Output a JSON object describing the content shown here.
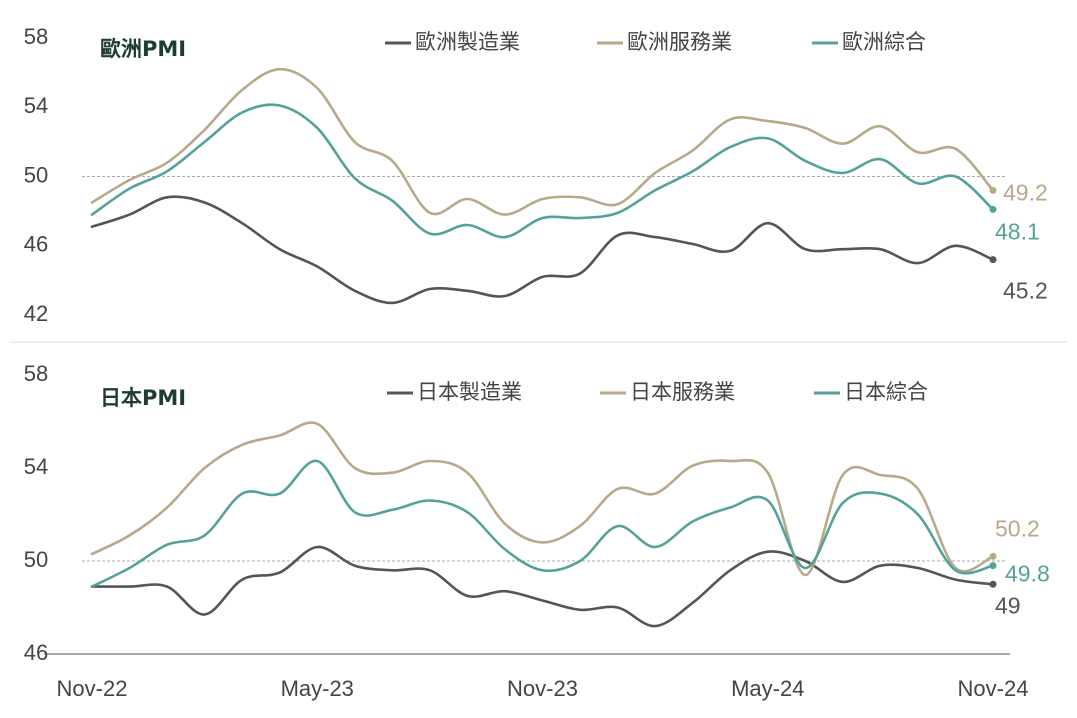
{
  "colors": {
    "manufacturing": "#555555",
    "services": "#b7a98a",
    "composite": "#55a29b",
    "title": "#1f3b36",
    "ref": "#aaaaaa"
  },
  "chart_data": [
    {
      "type": "line",
      "title": "歐洲PMI",
      "x": [
        "2022-11",
        "2022-12",
        "2023-01",
        "2023-02",
        "2023-03",
        "2023-04",
        "2023-05",
        "2023-06",
        "2023-07",
        "2023-08",
        "2023-09",
        "2023-10",
        "2023-11",
        "2023-12",
        "2024-01",
        "2024-02",
        "2024-03",
        "2024-04",
        "2024-05",
        "2024-06",
        "2024-07",
        "2024-08",
        "2024-09",
        "2024-10",
        "2024-11"
      ],
      "ylim": [
        42,
        58
      ],
      "yticks": [
        42,
        46,
        50,
        54,
        58
      ],
      "reference_line": 50,
      "legend_position": "top",
      "series": [
        {
          "name": "歐洲製造業",
          "color_key": "manufacturing",
          "end_label": "45.2",
          "values": [
            47.1,
            47.8,
            48.8,
            48.5,
            47.3,
            45.8,
            44.8,
            43.4,
            42.7,
            43.5,
            43.4,
            43.1,
            44.2,
            44.4,
            46.6,
            46.5,
            46.1,
            45.7,
            47.3,
            45.8,
            45.8,
            45.8,
            45.0,
            46.0,
            45.2
          ],
          "end_label_text": "45.2"
        },
        {
          "name": "歐洲服務業",
          "color_key": "services",
          "end_label": "49.2",
          "values": [
            48.5,
            49.8,
            50.8,
            52.7,
            55.0,
            56.2,
            55.1,
            52.0,
            50.9,
            47.9,
            48.7,
            47.8,
            48.7,
            48.8,
            48.4,
            50.2,
            51.5,
            53.3,
            53.2,
            52.8,
            51.9,
            52.9,
            51.4,
            51.6,
            49.2
          ],
          "end_label_text": "49.2"
        },
        {
          "name": "歐洲綜合",
          "color_key": "composite",
          "end_label": "48.1",
          "values": [
            47.8,
            49.3,
            50.3,
            52.0,
            53.7,
            54.1,
            52.8,
            49.9,
            48.6,
            46.7,
            47.2,
            46.5,
            47.6,
            47.6,
            47.9,
            49.2,
            50.3,
            51.7,
            52.2,
            50.9,
            50.2,
            51.0,
            49.6,
            50.0,
            48.1
          ],
          "end_label_text": "48.1"
        }
      ]
    },
    {
      "type": "line",
      "title": "日本PMI",
      "x": [
        "2022-11",
        "2022-12",
        "2023-01",
        "2023-02",
        "2023-03",
        "2023-04",
        "2023-05",
        "2023-06",
        "2023-07",
        "2023-08",
        "2023-09",
        "2023-10",
        "2023-11",
        "2023-12",
        "2024-01",
        "2024-02",
        "2024-03",
        "2024-04",
        "2024-05",
        "2024-06",
        "2024-07",
        "2024-08",
        "2024-09",
        "2024-10",
        "2024-11"
      ],
      "ylim": [
        46,
        58
      ],
      "yticks": [
        46,
        50,
        54,
        58
      ],
      "reference_line": 50,
      "legend_position": "top",
      "xticks": [
        "Nov-22",
        "May-23",
        "Nov-23",
        "May-24",
        "Nov-24"
      ],
      "series": [
        {
          "name": "日本製造業",
          "color_key": "manufacturing",
          "values": [
            48.9,
            48.9,
            48.9,
            47.7,
            49.2,
            49.5,
            50.6,
            49.8,
            49.6,
            49.6,
            48.5,
            48.7,
            48.3,
            47.9,
            48.0,
            47.2,
            48.2,
            49.6,
            50.4,
            50.0,
            49.1,
            49.8,
            49.7,
            49.2,
            49.0
          ],
          "end_label_text": "49"
        },
        {
          "name": "日本服務業",
          "color_key": "services",
          "values": [
            50.3,
            51.1,
            52.3,
            54.0,
            55.0,
            55.4,
            55.9,
            54.0,
            53.8,
            54.3,
            53.8,
            51.6,
            50.8,
            51.5,
            53.1,
            52.9,
            54.1,
            54.3,
            53.8,
            49.4,
            53.7,
            53.7,
            53.1,
            49.7,
            50.2
          ],
          "end_label_text": "50.2"
        },
        {
          "name": "日本綜合",
          "color_key": "composite",
          "values": [
            48.9,
            49.7,
            50.7,
            51.1,
            52.9,
            52.9,
            54.3,
            52.1,
            52.2,
            52.6,
            52.1,
            50.5,
            49.6,
            50.0,
            51.5,
            50.6,
            51.7,
            52.3,
            52.6,
            49.7,
            52.5,
            52.9,
            52.0,
            49.6,
            49.8
          ],
          "end_label_text": "49.8"
        }
      ]
    }
  ]
}
